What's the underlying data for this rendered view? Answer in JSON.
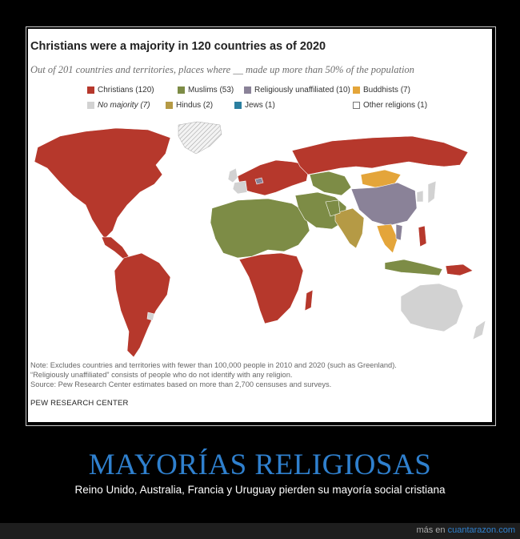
{
  "infographic": {
    "title": "Christians were a majority in 120 countries as of 2020",
    "subtitle": "Out of 201 countries and territories, places where __ made up more than 50% of the population",
    "legend": [
      {
        "label": "Christians (120)",
        "color": "#b6382c"
      },
      {
        "label": "Muslims (53)",
        "color": "#7d8c46"
      },
      {
        "label": "Religiously unaffiliated (10)",
        "color": "#8a8298"
      },
      {
        "label": "Buddhists (7)",
        "color": "#e4a53a"
      },
      {
        "label": "No majority (7)",
        "color": "#d2d2d2"
      },
      {
        "label": "Hindus (2)",
        "color": "#b59a45"
      },
      {
        "label": "Jews (1)",
        "color": "#2b7fa0"
      },
      {
        "label": "Other religions (1)",
        "color": "#ffffff"
      }
    ],
    "notes": [
      "Note: Excludes countries and territories with fewer than 100,000 people in 2010 and 2020 (such as Greenland).",
      "“Religiously unaffiliated” consists of people who do not identify with any religion.",
      "Source: Pew Research Center estimates based on more than 2,700 censuses and surveys."
    ],
    "source_org": "PEW RESEARCH CENTER"
  },
  "post": {
    "headline": "MAYORÍAS RELIGIOSAS",
    "caption": "Reino Unido, Australia, Francia y Uruguay pierden su mayoría social cristiana"
  },
  "footer": {
    "prefix": "más en",
    "site": "cuantarazon.com"
  }
}
